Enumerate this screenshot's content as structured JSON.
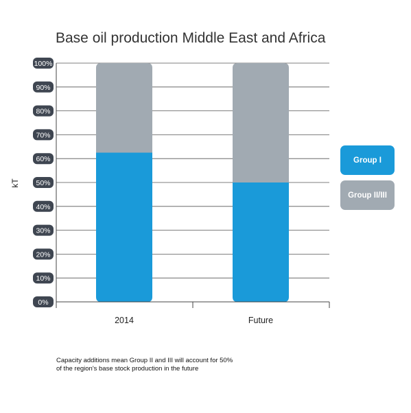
{
  "chart_data": {
    "type": "bar",
    "stacked": true,
    "title": "Base oil production Middle East and Africa",
    "ylabel": "kT",
    "xlabel": "",
    "ylim": [
      0,
      100
    ],
    "yticks": [
      "0%",
      "10%",
      "20%",
      "30%",
      "40%",
      "50%",
      "60%",
      "70%",
      "80%",
      "90%",
      "100%"
    ],
    "categories": [
      "2014",
      "Future"
    ],
    "series": [
      {
        "name": "Group I",
        "values": [
          62.5,
          50
        ],
        "color": "#1a9ad9"
      },
      {
        "name": "Group II/III",
        "values": [
          37.5,
          50
        ],
        "color": "#a1aab2"
      }
    ],
    "legend_position": "right",
    "grid": true,
    "annotation": [
      "Capacity additions mean Group II and III will account for 50%",
      "of the region's base stock production in the future"
    ]
  },
  "colors": {
    "tick_badge": "#3f4651",
    "grid": "#555555",
    "axis": "#444444"
  }
}
